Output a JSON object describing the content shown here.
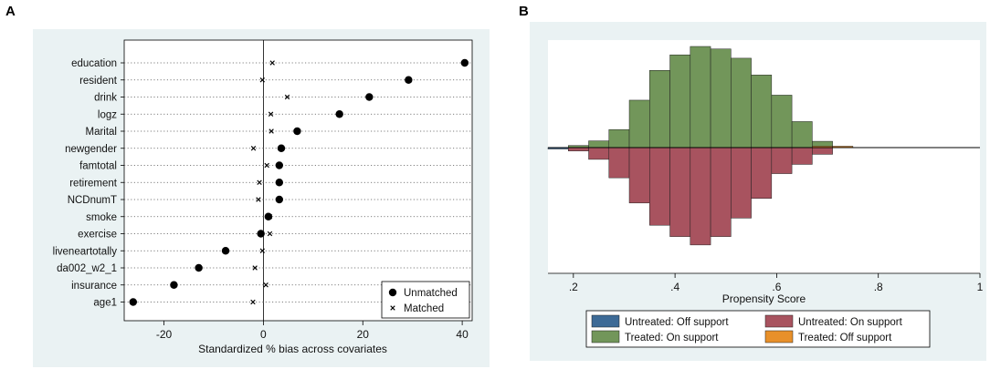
{
  "panels": {
    "a_label": "A",
    "b_label": "B"
  },
  "colors": {
    "panel_bg": "#eaf2f3",
    "untreated_off": "#3d6a96",
    "untreated_on": "#a8535f",
    "treated_on": "#72965a",
    "treated_off": "#e8902a"
  },
  "chart_data": [
    {
      "type": "scatter",
      "title": "",
      "xlabel": "Standardized % bias across covariates",
      "ylabel": "",
      "xlim": [
        -28,
        42
      ],
      "xticks": [
        -20,
        0,
        20,
        40
      ],
      "xtick_labels": [
        "-20",
        "0",
        "20",
        "40"
      ],
      "categories": [
        "education",
        "resident",
        "drink",
        "logz",
        "Marital",
        "newgender",
        "famtotal",
        "retirement",
        "NCDnumT",
        "smoke",
        "exercise",
        "liveneartotally",
        "da002_w2_1",
        "insurance",
        "age1"
      ],
      "series": [
        {
          "name": "Unmatched",
          "marker": "dot",
          "values": [
            40.5,
            29.2,
            21.3,
            15.3,
            6.8,
            3.6,
            3.2,
            3.2,
            3.2,
            1.0,
            -0.5,
            -7.6,
            -13.0,
            -18.0,
            -26.2
          ]
        },
        {
          "name": "Matched",
          "marker": "x",
          "values": [
            1.8,
            -0.2,
            4.8,
            1.5,
            1.6,
            -2.0,
            0.7,
            -0.8,
            -1.0,
            1.3,
            1.3,
            -0.2,
            -1.7,
            0.5,
            -2.1
          ]
        }
      ],
      "legend": [
        "Unmatched",
        "Matched"
      ],
      "legend_position": "bottom-right"
    },
    {
      "type": "bar",
      "title": "",
      "xlabel": "Propensity Score",
      "xlim": [
        0.15,
        1.0
      ],
      "xticks": [
        0.2,
        0.4,
        0.6,
        0.8,
        1.0
      ],
      "xtick_labels": [
        ".2",
        ".4",
        ".6",
        ".8",
        "1"
      ],
      "ylim": [
        -0.23,
        0.2
      ],
      "bin_width": 0.04,
      "series": [
        {
          "name": "Untreated: Off support",
          "direction": "down",
          "bins": [
            [
              0.15,
              0.003
            ]
          ]
        },
        {
          "name": "Untreated: On support",
          "direction": "down",
          "bins": [
            [
              0.19,
              0.008
            ],
            [
              0.23,
              0.028
            ],
            [
              0.27,
              0.072
            ],
            [
              0.31,
              0.132
            ],
            [
              0.35,
              0.185
            ],
            [
              0.39,
              0.212
            ],
            [
              0.43,
              0.232
            ],
            [
              0.47,
              0.212
            ],
            [
              0.51,
              0.168
            ],
            [
              0.55,
              0.121
            ],
            [
              0.59,
              0.062
            ],
            [
              0.63,
              0.04
            ],
            [
              0.67,
              0.016
            ]
          ]
        },
        {
          "name": "Treated: On support",
          "direction": "up",
          "bins": [
            [
              0.19,
              0.005
            ],
            [
              0.23,
              0.016
            ],
            [
              0.27,
              0.043
            ],
            [
              0.31,
              0.113
            ],
            [
              0.35,
              0.184
            ],
            [
              0.39,
              0.221
            ],
            [
              0.43,
              0.241
            ],
            [
              0.47,
              0.235
            ],
            [
              0.51,
              0.213
            ],
            [
              0.55,
              0.173
            ],
            [
              0.59,
              0.125
            ],
            [
              0.63,
              0.062
            ],
            [
              0.67,
              0.015
            ]
          ]
        },
        {
          "name": "Treated: Off support",
          "direction": "up",
          "bins": [
            [
              0.67,
              0.003
            ],
            [
              0.71,
              0.002
            ]
          ]
        }
      ],
      "legend": [
        "Untreated: Off support",
        "Untreated: On support",
        "Treated: On support",
        "Treated: Off support"
      ],
      "legend_position": "bottom"
    }
  ]
}
